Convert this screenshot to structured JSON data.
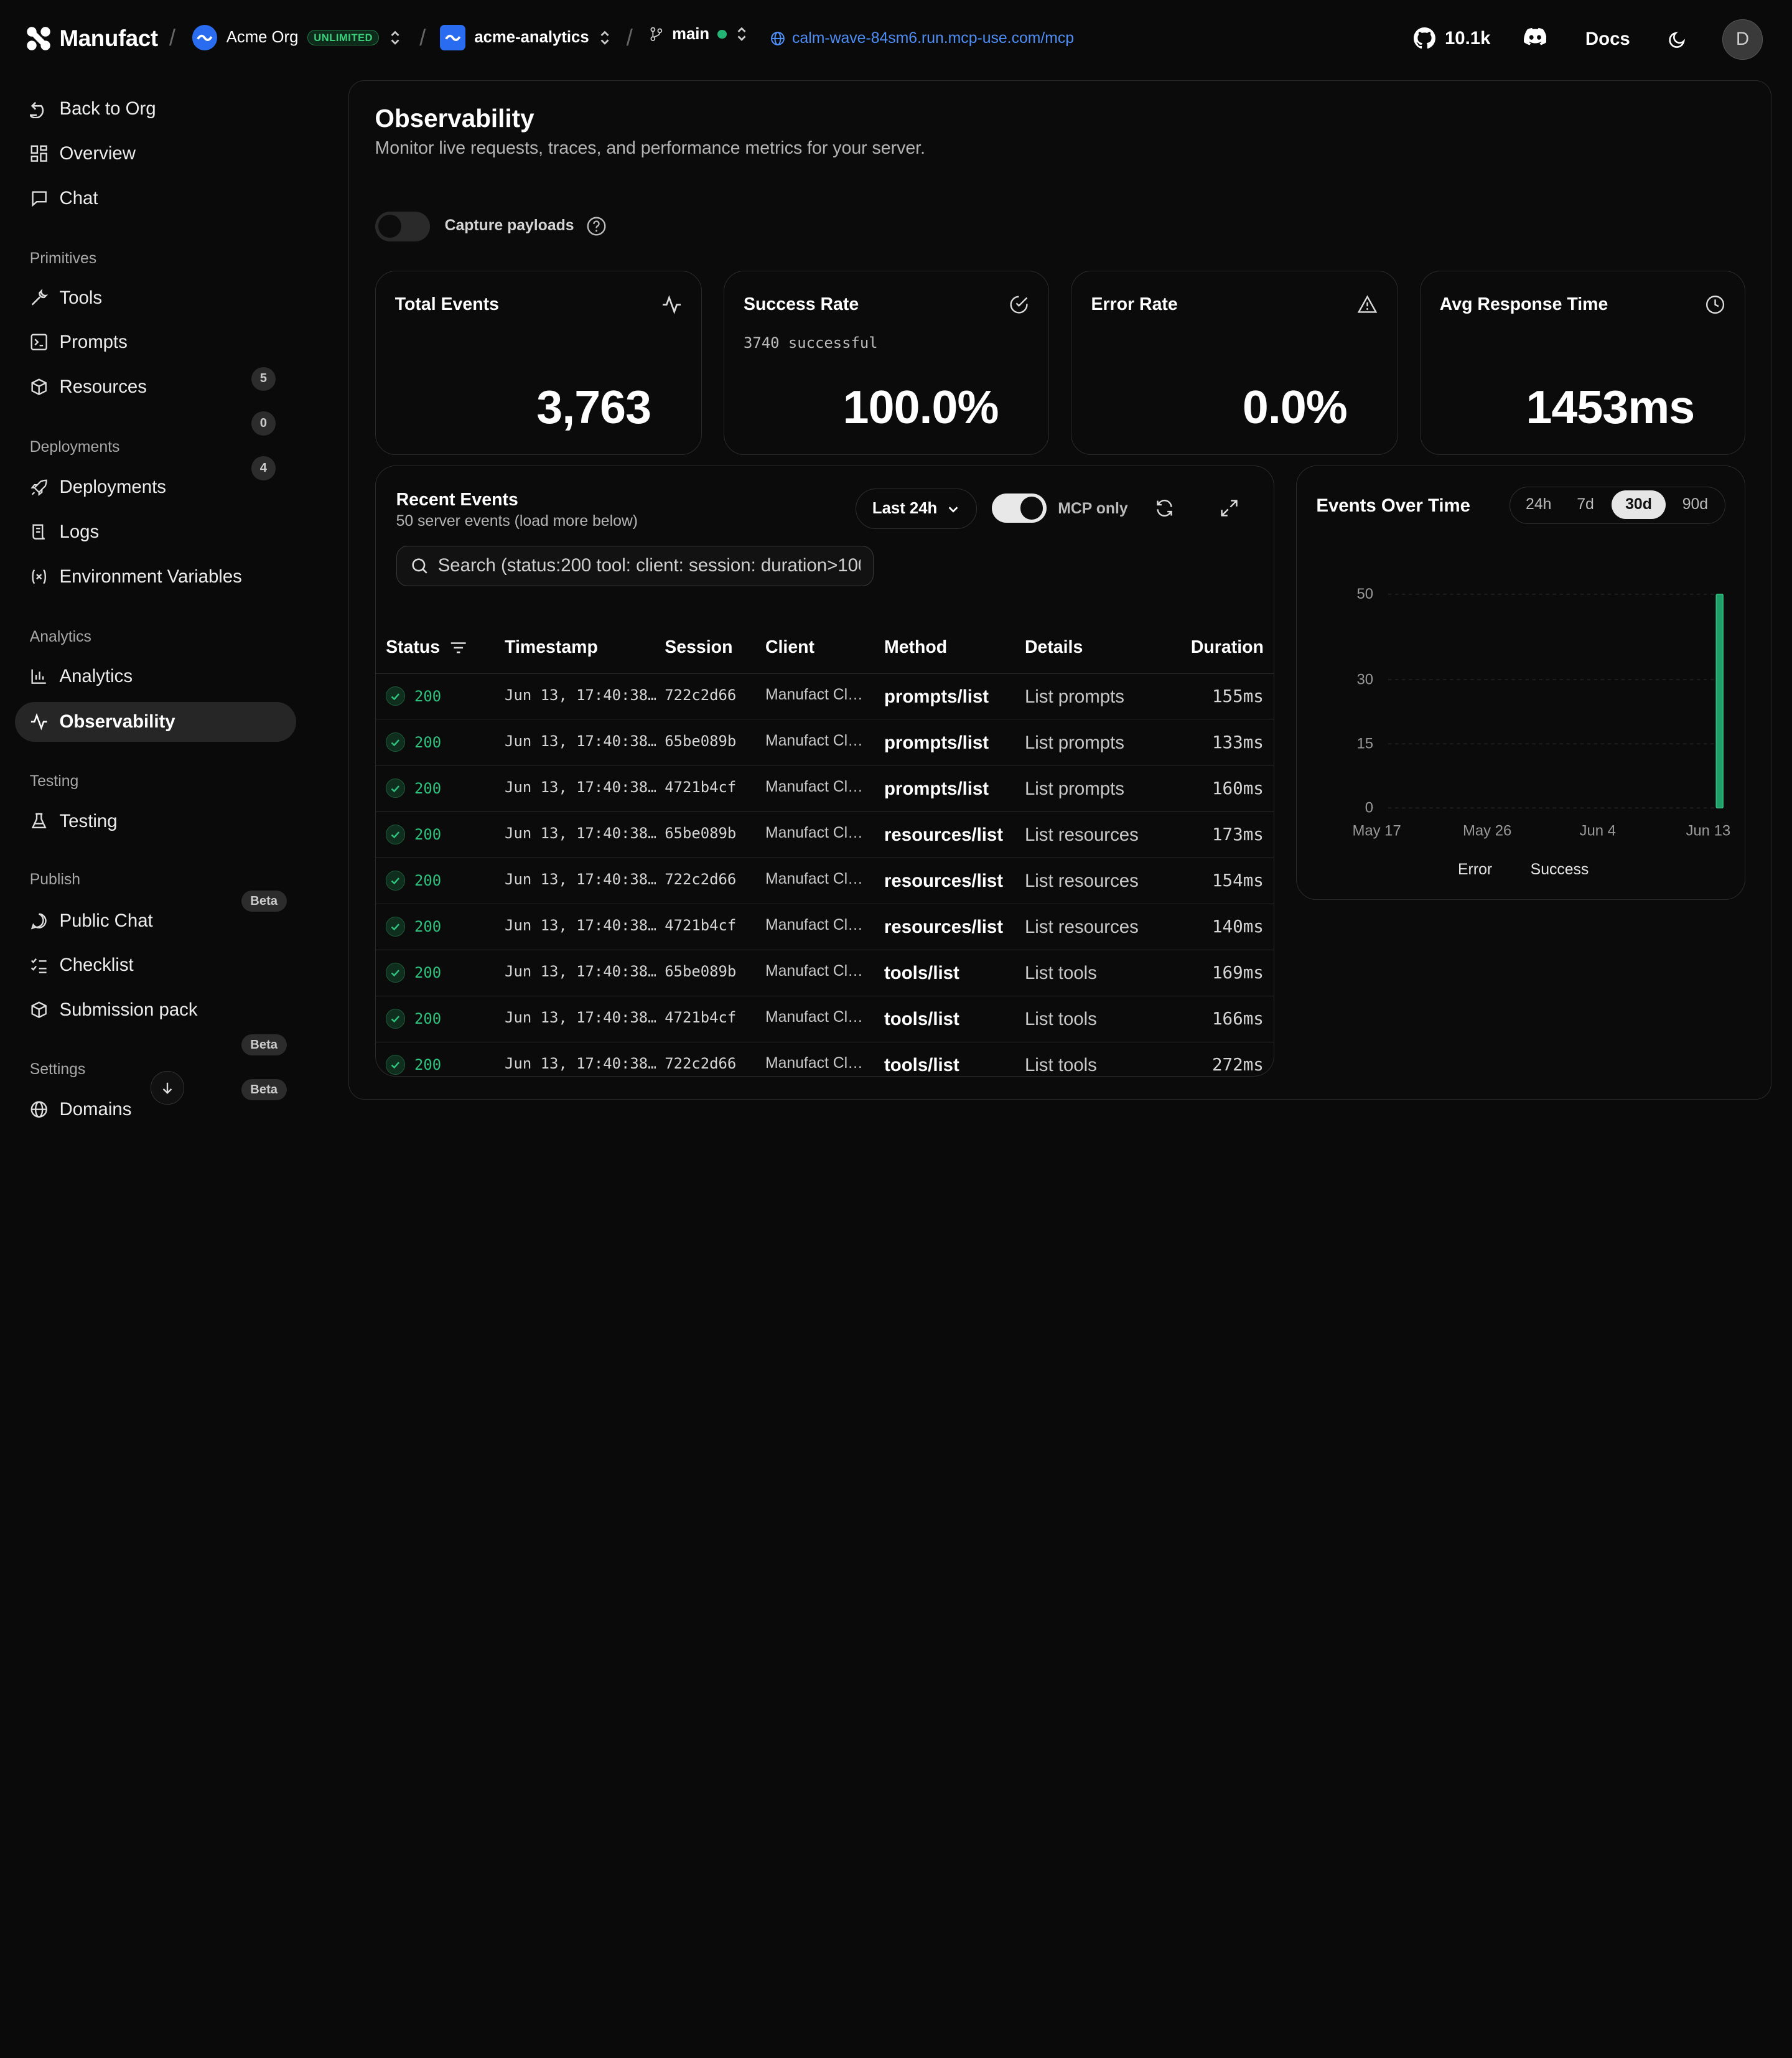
{
  "topbar": {
    "brand": "Manufact",
    "org": {
      "name": "Acme Org",
      "plan": "UNLIMITED"
    },
    "project": "acme-analytics",
    "branch": "main",
    "url": "calm-wave-84sm6.run.mcp-use.com/mcp",
    "github_stars": "10.1k",
    "docs": "Docs",
    "avatar": "D"
  },
  "sidebar": {
    "back": "Back to Org",
    "overview": "Overview",
    "chat": "Chat",
    "primitives": {
      "title": "Primitives",
      "tools": "Tools",
      "tools_count": "5",
      "prompts": "Prompts",
      "prompts_count": "0",
      "resources": "Resources",
      "resources_count": "4"
    },
    "deployments": {
      "title": "Deployments",
      "deployments": "Deployments",
      "logs": "Logs",
      "env": "Environment Variables"
    },
    "analytics": {
      "title": "Analytics",
      "analytics": "Analytics",
      "observability": "Observability"
    },
    "testing": {
      "title": "Testing",
      "testing": "Testing",
      "badge": "Beta"
    },
    "publish": {
      "title": "Publish",
      "public_chat": "Public Chat",
      "checklist": "Checklist",
      "checklist_badge": "Beta",
      "submission": "Submission pack",
      "submission_badge": "Beta"
    },
    "settings": {
      "title": "Settings",
      "domains": "Domains"
    }
  },
  "page": {
    "title": "Observability",
    "subtitle": "Monitor live requests, traces, and performance metrics for your server.",
    "capture_label": "Capture payloads",
    "capture_on": false
  },
  "stats": [
    {
      "title": "Total Events",
      "value": "3,763",
      "sub": "",
      "icon": "activity-icon"
    },
    {
      "title": "Success Rate",
      "value": "100.0%",
      "sub": "3740 successful",
      "icon": "check-circle-icon"
    },
    {
      "title": "Error Rate",
      "value": "0.0%",
      "sub": "",
      "icon": "alert-triangle-icon"
    },
    {
      "title": "Avg Response Time",
      "value": "1453ms",
      "sub": "",
      "icon": "clock-icon"
    }
  ],
  "events": {
    "title": "Recent Events",
    "subtitle": "50 server events (load more below)",
    "range": "Last 24h",
    "mcp_only_label": "MCP only",
    "mcp_only": true,
    "search_placeholder": "Search (status:200 tool: client: session: duration>100)",
    "columns": [
      "Status",
      "Timestamp",
      "Session",
      "Client",
      "Method",
      "Details",
      "Duration"
    ],
    "rows": [
      {
        "status": "200",
        "ts": "Jun 13, 17:40:38…",
        "session": "722c2d66",
        "client": "Manufact Cl…",
        "method": "prompts/list",
        "details": "List prompts",
        "duration": "155ms"
      },
      {
        "status": "200",
        "ts": "Jun 13, 17:40:38…",
        "session": "65be089b",
        "client": "Manufact Cl…",
        "method": "prompts/list",
        "details": "List prompts",
        "duration": "133ms"
      },
      {
        "status": "200",
        "ts": "Jun 13, 17:40:38…",
        "session": "4721b4cf",
        "client": "Manufact Cl…",
        "method": "prompts/list",
        "details": "List prompts",
        "duration": "160ms"
      },
      {
        "status": "200",
        "ts": "Jun 13, 17:40:38…",
        "session": "65be089b",
        "client": "Manufact Cl…",
        "method": "resources/list",
        "details": "List resources",
        "duration": "173ms"
      },
      {
        "status": "200",
        "ts": "Jun 13, 17:40:38…",
        "session": "722c2d66",
        "client": "Manufact Cl…",
        "method": "resources/list",
        "details": "List resources",
        "duration": "154ms"
      },
      {
        "status": "200",
        "ts": "Jun 13, 17:40:38…",
        "session": "4721b4cf",
        "client": "Manufact Cl…",
        "method": "resources/list",
        "details": "List resources",
        "duration": "140ms"
      },
      {
        "status": "200",
        "ts": "Jun 13, 17:40:38…",
        "session": "65be089b",
        "client": "Manufact Cl…",
        "method": "tools/list",
        "details": "List tools",
        "duration": "169ms"
      },
      {
        "status": "200",
        "ts": "Jun 13, 17:40:38…",
        "session": "4721b4cf",
        "client": "Manufact Cl…",
        "method": "tools/list",
        "details": "List tools",
        "duration": "166ms"
      },
      {
        "status": "200",
        "ts": "Jun 13, 17:40:38…",
        "session": "722c2d66",
        "client": "Manufact Cl…",
        "method": "tools/list",
        "details": "List tools",
        "duration": "272ms"
      }
    ]
  },
  "events_over_time": {
    "title": "Events Over Time",
    "ranges": [
      "24h",
      "7d",
      "30d",
      "90d"
    ],
    "selected_range": "30d"
  },
  "chart_data": {
    "type": "bar",
    "title": "Events Over Time",
    "x_ticks": [
      "May 17",
      "May 26",
      "Jun 4",
      "Jun 13"
    ],
    "y_ticks": [
      0,
      15,
      30,
      50
    ],
    "ylim": [
      0,
      50
    ],
    "series": [
      {
        "name": "Error",
        "color": "#e5484d",
        "points": [
          {
            "x": "Jun 13",
            "y": 0
          }
        ]
      },
      {
        "name": "Success",
        "color": "#1fa06a",
        "points": [
          {
            "x": "Jun 13",
            "y": 50
          }
        ]
      }
    ],
    "legend": [
      "Error",
      "Success"
    ],
    "legend_position": "bottom",
    "grid": true
  },
  "colors": {
    "accent_green": "#2ec27e",
    "link_blue": "#4d8ef7",
    "bg": "#0a0a0a"
  }
}
